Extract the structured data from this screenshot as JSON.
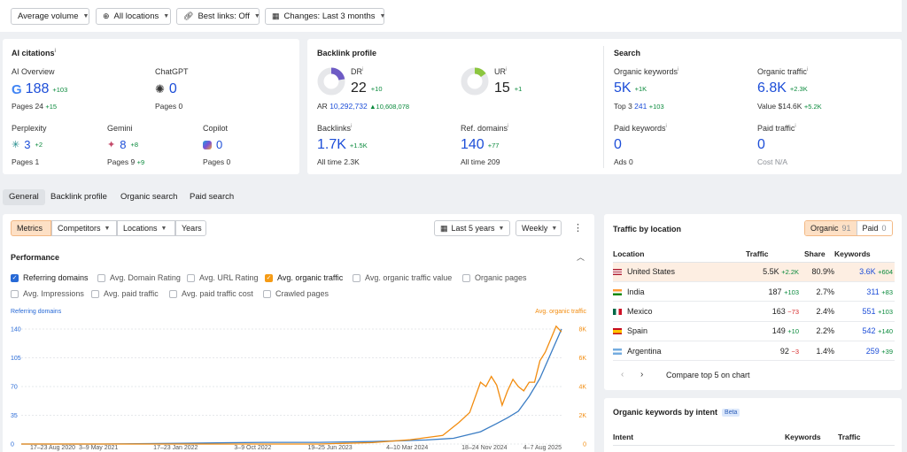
{
  "filters": [
    {
      "label": "Average volume",
      "icon": "none"
    },
    {
      "label": "All locations",
      "icon": "globe-icon"
    },
    {
      "label": "Best links: Off",
      "icon": "link-icon"
    },
    {
      "label": "Changes: Last 3 months",
      "icon": "calendar-icon"
    }
  ],
  "ai": {
    "title": "AI citations",
    "overview": {
      "label": "AI Overview",
      "value": "188",
      "delta": "+103",
      "pages_label": "Pages",
      "pages": "24",
      "pages_delta": "+15"
    },
    "chatgpt": {
      "label": "ChatGPT",
      "value": "0",
      "pages_label": "Pages",
      "pages": "0"
    },
    "perplexity": {
      "label": "Perplexity",
      "value": "3",
      "delta": "+2",
      "pages_label": "Pages",
      "pages": "1"
    },
    "gemini": {
      "label": "Gemini",
      "value": "8",
      "delta": "+8",
      "pages_label": "Pages",
      "pages": "9",
      "pages_delta": "+9"
    },
    "copilot": {
      "label": "Copilot",
      "value": "0",
      "pages_label": "Pages",
      "pages": "0"
    }
  },
  "backlink": {
    "title": "Backlink profile",
    "dr": {
      "label": "DR",
      "value": "22",
      "delta": "+10",
      "gauge": 0.22
    },
    "ar": {
      "label": "AR",
      "value": "10,292,732",
      "delta": "▲10,608,078"
    },
    "ur": {
      "label": "UR",
      "value": "15",
      "delta": "+1",
      "gauge": 0.15
    },
    "backlinks": {
      "label": "Backlinks",
      "value": "1.7K",
      "delta": "+1.5K",
      "sub_label": "All time",
      "sub": "2.3K"
    },
    "refdomains": {
      "label": "Ref. domains",
      "value": "140",
      "delta": "+77",
      "sub_label": "All time",
      "sub": "209"
    }
  },
  "search": {
    "title": "Search",
    "org_kw": {
      "label": "Organic keywords",
      "value": "5K",
      "delta": "+1K",
      "sub_label": "Top 3",
      "sub": "241",
      "sub_delta": "+103"
    },
    "org_traffic": {
      "label": "Organic traffic",
      "value": "6.8K",
      "delta": "+2.3K",
      "sub_label": "Value",
      "sub": "$14.6K",
      "sub_delta": "+5.2K"
    },
    "paid_kw": {
      "label": "Paid keywords",
      "value": "0",
      "sub_label": "Ads",
      "sub": "0"
    },
    "paid_traffic": {
      "label": "Paid traffic",
      "value": "0",
      "sub_label": "Cost",
      "sub": "N/A"
    }
  },
  "tabs": [
    "General",
    "Backlink profile",
    "Organic search",
    "Paid search"
  ],
  "toolbar": {
    "segments": [
      "Metrics",
      "Competitors",
      "Locations",
      "Years"
    ],
    "range": "Last 5 years",
    "interval": "Weekly"
  },
  "performance": {
    "title": "Performance",
    "checks": [
      {
        "label": "Referring domains",
        "state": "blue"
      },
      {
        "label": "Avg. Domain Rating",
        "state": "off"
      },
      {
        "label": "Avg. URL Rating",
        "state": "off"
      },
      {
        "label": "Avg. organic traffic",
        "state": "orange"
      },
      {
        "label": "Avg. organic traffic value",
        "state": "off"
      },
      {
        "label": "Organic pages",
        "state": "off"
      },
      {
        "label": "Avg. Impressions",
        "state": "off"
      },
      {
        "label": "Avg. paid traffic",
        "state": "off"
      },
      {
        "label": "Avg. paid traffic cost",
        "state": "off"
      },
      {
        "label": "Crawled pages",
        "state": "off"
      }
    ]
  },
  "chart_data": {
    "type": "line",
    "left_axis_label": "Referring domains",
    "right_axis_label": "Avg. organic traffic",
    "left_ticks": [
      "0",
      "35",
      "70",
      "105",
      "140"
    ],
    "right_ticks": [
      "0",
      "2K",
      "4K",
      "6K",
      "8K"
    ],
    "left_ylim": [
      0,
      140
    ],
    "right_ylim": [
      0,
      8000
    ],
    "x_ticks": [
      "17–23 Aug 2020",
      "3–9 May 2021",
      "17–23 Jan 2022",
      "3–9 Oct 2022",
      "19–25 Jun 2023",
      "4–10 Mar 2024",
      "18–24 Nov 2024",
      "4–7 Aug 2025"
    ],
    "series": [
      {
        "name": "Referring domains",
        "axis": "left",
        "color": "#3b7dc4",
        "x": [
          0,
          0.15,
          0.3,
          0.45,
          0.55,
          0.65,
          0.7,
          0.75,
          0.8,
          0.85,
          0.88,
          0.9,
          0.92,
          0.94,
          0.96,
          0.98,
          1.0
        ],
        "values": [
          0,
          0,
          1,
          2,
          2,
          3,
          4,
          5,
          7,
          15,
          25,
          32,
          40,
          58,
          80,
          110,
          140
        ]
      },
      {
        "name": "Avg. organic traffic",
        "axis": "right",
        "color": "#f28c0f",
        "x": [
          0,
          0.2,
          0.4,
          0.55,
          0.65,
          0.72,
          0.78,
          0.81,
          0.83,
          0.85,
          0.86,
          0.87,
          0.88,
          0.89,
          0.9,
          0.91,
          0.92,
          0.93,
          0.94,
          0.95,
          0.96,
          0.97,
          0.98,
          0.99,
          1.0
        ],
        "values": [
          0,
          0,
          0,
          0,
          100,
          300,
          600,
          1500,
          2200,
          4300,
          4000,
          4700,
          4100,
          2700,
          3700,
          4500,
          4000,
          3700,
          4300,
          4300,
          5800,
          6400,
          7300,
          8200,
          7800
        ]
      }
    ]
  },
  "location": {
    "title": "Traffic by location",
    "toggle": [
      {
        "label": "Organic",
        "count": "91"
      },
      {
        "label": "Paid",
        "count": "0"
      }
    ],
    "headers": [
      "Location",
      "Traffic",
      "Share",
      "Keywords"
    ],
    "rows": [
      {
        "flag": "us",
        "name": "United States",
        "traffic": "5.5K",
        "delta": "+2.2K",
        "delta_color": "green",
        "share": "80.9%",
        "keywords": "3.6K",
        "kw_delta": "+604"
      },
      {
        "flag": "in",
        "name": "India",
        "traffic": "187",
        "delta": "+103",
        "delta_color": "green",
        "share": "2.7%",
        "keywords": "311",
        "kw_delta": "+83"
      },
      {
        "flag": "mx",
        "name": "Mexico",
        "traffic": "163",
        "delta": "−73",
        "delta_color": "red",
        "share": "2.4%",
        "keywords": "551",
        "kw_delta": "+103"
      },
      {
        "flag": "es",
        "name": "Spain",
        "traffic": "149",
        "delta": "+10",
        "delta_color": "green",
        "share": "2.2%",
        "keywords": "542",
        "kw_delta": "+140"
      },
      {
        "flag": "ar",
        "name": "Argentina",
        "traffic": "92",
        "delta": "−3",
        "delta_color": "red",
        "share": "1.4%",
        "keywords": "259",
        "kw_delta": "+39"
      }
    ],
    "compare": "Compare top 5 on chart"
  },
  "intent": {
    "title": "Organic keywords by intent",
    "badge": "Beta",
    "headers": [
      "Intent",
      "Keywords",
      "Traffic"
    ]
  }
}
